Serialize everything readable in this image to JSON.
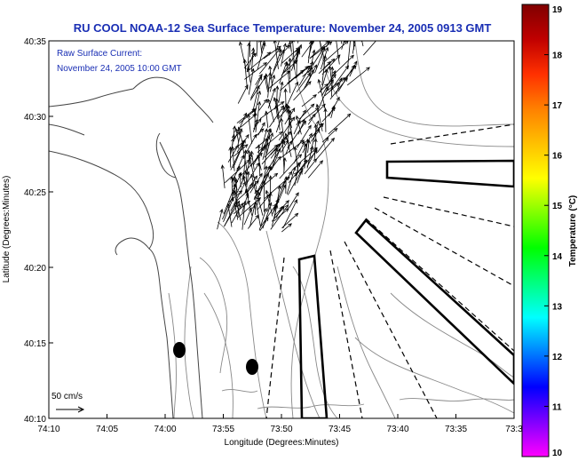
{
  "chart_data": {
    "type": "vector-field-map",
    "title": "RU COOL  NOAA-12  Sea Surface Temperature:  November 24, 2005 0913 GMT",
    "annotation": {
      "line1": "Raw Surface Current:",
      "line2": "November 24, 2005 10:00 GMT"
    },
    "xlabel": "Longitude (Degrees:Minutes)",
    "ylabel": "Latitude (Degrees:Minutes)",
    "x_ticks": [
      "74:10",
      "74:05",
      "74:00",
      "73:55",
      "73:50",
      "73:45",
      "73:40",
      "73:35",
      "73:3"
    ],
    "y_ticks": [
      "40:10",
      "40:15",
      "40:20",
      "40:25",
      "40:30",
      "40:35"
    ],
    "x_range_min_west": [
      -74.1667,
      -73.5
    ],
    "y_range_deg": [
      40.1667,
      40.5833
    ],
    "scale_label": "50 cm/s",
    "colorbar": {
      "label": "Temperature (°C)",
      "ticks": [
        "10",
        "11",
        "12",
        "13",
        "14",
        "15",
        "16",
        "17",
        "18",
        "19"
      ],
      "range": [
        10,
        19
      ],
      "colors": [
        "#ff00ff",
        "#8000ff",
        "#0000ff",
        "#0080ff",
        "#00ffff",
        "#00ff80",
        "#00ff00",
        "#80ff00",
        "#ffff00",
        "#ffc000",
        "#ff8000",
        "#ff3000",
        "#c00000",
        "#800000"
      ]
    },
    "current_vectors": {
      "region_lon": [
        -73.93,
        -73.75
      ],
      "region_lat": [
        40.37,
        40.59
      ],
      "count": 320,
      "dominant_direction": "north-northeast",
      "max_speed_cm_s": 60
    },
    "markers": [
      {
        "type": "filled-ellipse",
        "lon": -73.9817,
        "lat": 40.2433
      },
      {
        "type": "filled-ellipse",
        "lon": -73.9033,
        "lat": 40.2267
      }
    ]
  }
}
